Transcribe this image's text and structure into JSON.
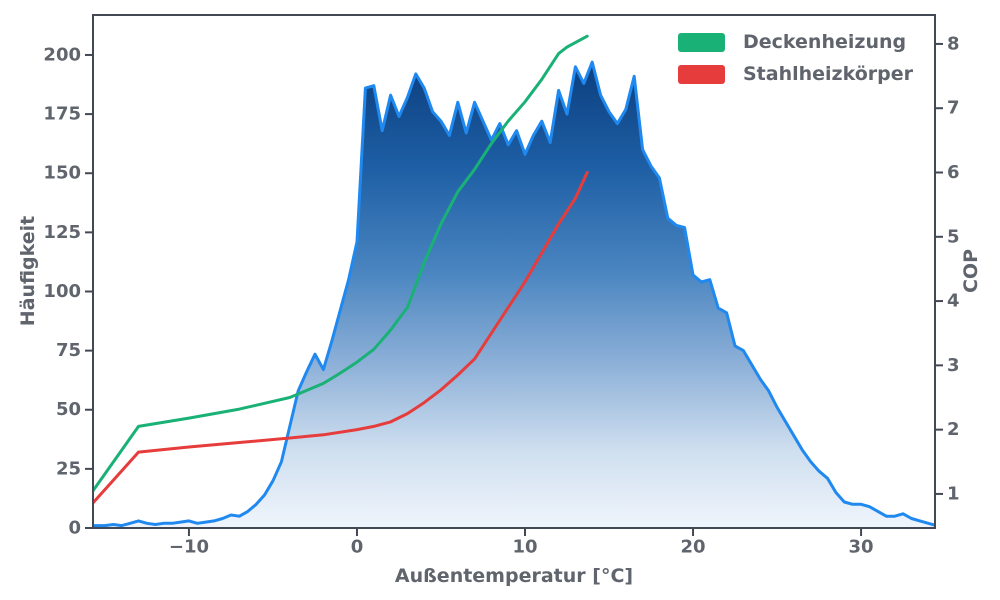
{
  "figure": {
    "background": "#ffffff"
  },
  "colors": {
    "spine": "#424954",
    "tick_text": "#5f646d",
    "histogram_line": "#2089f0",
    "deckenheizung": "#19b176",
    "stahlheizkoerper": "#e73c3c"
  },
  "legend": {
    "position": "upper right",
    "items": [
      {
        "label": "Deckenheizung",
        "color": "#19b176"
      },
      {
        "label": "Stahlheizkörper",
        "color": "#e73c3c"
      }
    ]
  },
  "chart_data": {
    "type": "area+line",
    "title": "",
    "xlabel": "Außentemperatur [°C]",
    "grid": false,
    "legend_position": "upper right",
    "axes": {
      "x": {
        "lim": [
          -15.71,
          34.4
        ],
        "ticks": [
          -10,
          0,
          10,
          20,
          30
        ],
        "tick_labels": [
          "−10",
          "0",
          "10",
          "20",
          "30"
        ]
      },
      "left": {
        "label": "Häufigkeit",
        "lim": [
          0,
          216.9
        ],
        "ticks": [
          0,
          25,
          50,
          75,
          100,
          125,
          150,
          175,
          200
        ],
        "tick_labels": [
          "0",
          "25",
          "50",
          "75",
          "100",
          "125",
          "150",
          "175",
          "200"
        ]
      },
      "right": {
        "label": "COP",
        "lim": [
          0.47,
          8.45
        ],
        "ticks": [
          1,
          2,
          3,
          4,
          5,
          6,
          7,
          8
        ],
        "tick_labels": [
          "1",
          "2",
          "3",
          "4",
          "5",
          "6",
          "7",
          "8"
        ]
      }
    },
    "histogram": {
      "name": "Häufigkeit",
      "axis": "left",
      "bin_start": -16,
      "bin_step": 0.5,
      "values": [
        1,
        1,
        1,
        1.5,
        1,
        2,
        3,
        2,
        1.5,
        2,
        2,
        2.5,
        3,
        2,
        2.5,
        3,
        4,
        5.5,
        5,
        7,
        10,
        14,
        20,
        28,
        43,
        58,
        66,
        73.5,
        67,
        79,
        92,
        105,
        121,
        186,
        187,
        168,
        183,
        174,
        182,
        192,
        186,
        176,
        172,
        166,
        180,
        167,
        180,
        172,
        164,
        171,
        162,
        168,
        158,
        166,
        172,
        163,
        185,
        175,
        195,
        188,
        197,
        183,
        176,
        171,
        177,
        191,
        160,
        153,
        148,
        131,
        128,
        127,
        107,
        104,
        105,
        93,
        91,
        77,
        75,
        69,
        63,
        58,
        51,
        45,
        39,
        33,
        28,
        24,
        21,
        15,
        11,
        10,
        10,
        9,
        7,
        5,
        5,
        6,
        4,
        3,
        2,
        1,
        0.5
      ],
      "line_color": "#2089f0",
      "line_width": 3,
      "fill_gradient": [
        {
          "offset": 0.0,
          "color": "#0a3876"
        },
        {
          "offset": 0.12,
          "color": "#0e4384"
        },
        {
          "offset": 0.3,
          "color": "#1e5fa5"
        },
        {
          "offset": 0.5,
          "color": "#4a85c0"
        },
        {
          "offset": 0.68,
          "color": "#8db0d8"
        },
        {
          "offset": 0.85,
          "color": "#cfdfef"
        },
        {
          "offset": 1.0,
          "color": "#f0f5fc"
        }
      ]
    },
    "series": [
      {
        "name": "Deckenheizung",
        "axis": "right",
        "color": "#19b176",
        "line_width": 3,
        "x": [
          -15.71,
          -13,
          -10,
          -7,
          -4,
          -2,
          -1,
          0,
          1,
          2,
          3,
          4,
          5,
          6,
          7,
          8,
          9,
          10,
          11,
          12,
          12.5,
          13.7
        ],
        "y": [
          1.05,
          2.05,
          2.18,
          2.32,
          2.5,
          2.72,
          2.88,
          3.05,
          3.25,
          3.55,
          3.9,
          4.6,
          5.2,
          5.7,
          6.05,
          6.45,
          6.8,
          7.1,
          7.45,
          7.85,
          7.95,
          8.12
        ]
      },
      {
        "name": "Stahlheizkörper",
        "axis": "right",
        "color": "#e73c3c",
        "line_width": 3,
        "x": [
          -15.71,
          -13,
          -10,
          -7,
          -4,
          -2,
          0,
          1,
          2,
          3,
          4,
          5,
          6,
          7,
          8,
          9,
          10,
          11,
          12,
          13,
          13.7
        ],
        "y": [
          0.86,
          1.65,
          1.73,
          1.8,
          1.87,
          1.92,
          2.0,
          2.05,
          2.12,
          2.25,
          2.42,
          2.62,
          2.85,
          3.1,
          3.5,
          3.9,
          4.3,
          4.75,
          5.2,
          5.6,
          6.0
        ]
      }
    ]
  }
}
